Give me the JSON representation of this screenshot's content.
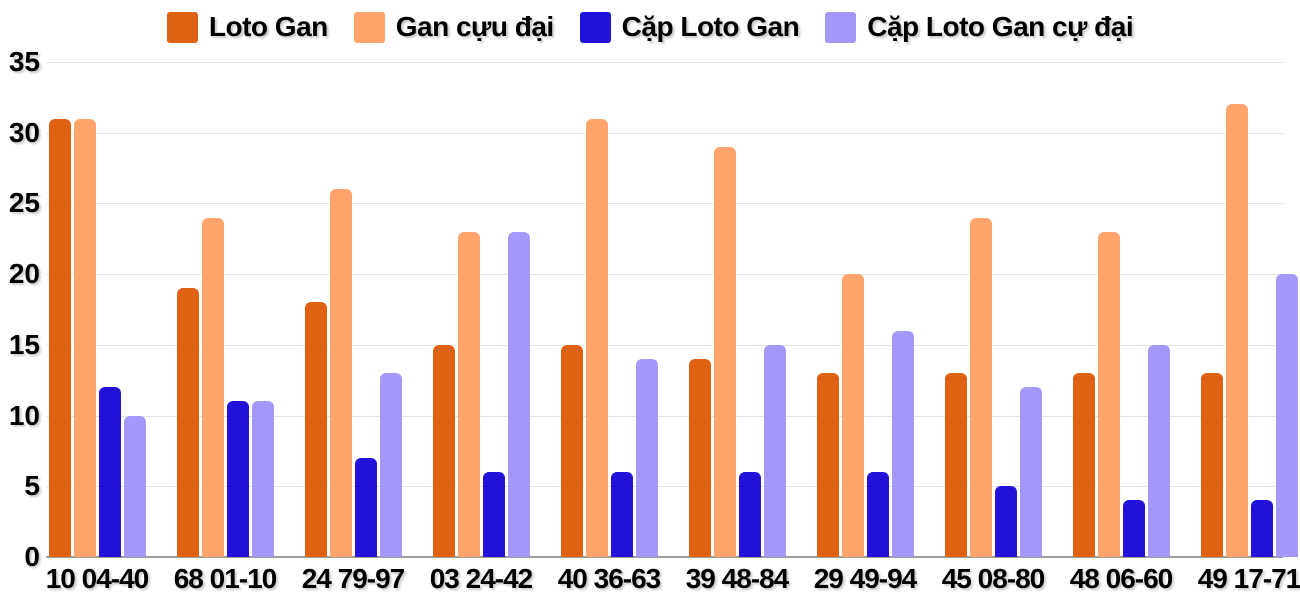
{
  "chart_data": {
    "type": "bar",
    "title": "",
    "xlabel": "",
    "ylabel": "",
    "categories": [
      "10 04-40",
      "68 01-10",
      "24 79-97",
      "03 24-42",
      "40 36-63",
      "39 48-84",
      "29 49-94",
      "45 08-80",
      "48 06-60",
      "49 17-71"
    ],
    "series": [
      {
        "name": "Loto Gan",
        "color": "#dd6312",
        "values": [
          31,
          19,
          18,
          15,
          15,
          14,
          13,
          13,
          13,
          13
        ]
      },
      {
        "name": "Gan cựu đại",
        "color": "#ffa46a",
        "values": [
          31,
          24,
          26,
          23,
          31,
          29,
          20,
          24,
          23,
          32
        ]
      },
      {
        "name": "Cặp Loto Gan",
        "color": "#2211d9",
        "values": [
          12,
          11,
          7,
          6,
          6,
          6,
          6,
          5,
          4,
          4
        ]
      },
      {
        "name": "Cặp Loto Gan cự đại",
        "color": "#a498fa",
        "values": [
          10,
          11,
          13,
          23,
          14,
          15,
          16,
          12,
          15,
          20
        ]
      }
    ],
    "ylim": [
      0,
      35
    ],
    "yticks": [
      0,
      5,
      10,
      15,
      20,
      25,
      30,
      35
    ],
    "grid": "horizontal",
    "legend_position": "top",
    "colors": {
      "gridline": "#e4e4e4",
      "axis_line": "#9e9e9e",
      "label_text": "#000000",
      "background": "#ffffff"
    }
  }
}
